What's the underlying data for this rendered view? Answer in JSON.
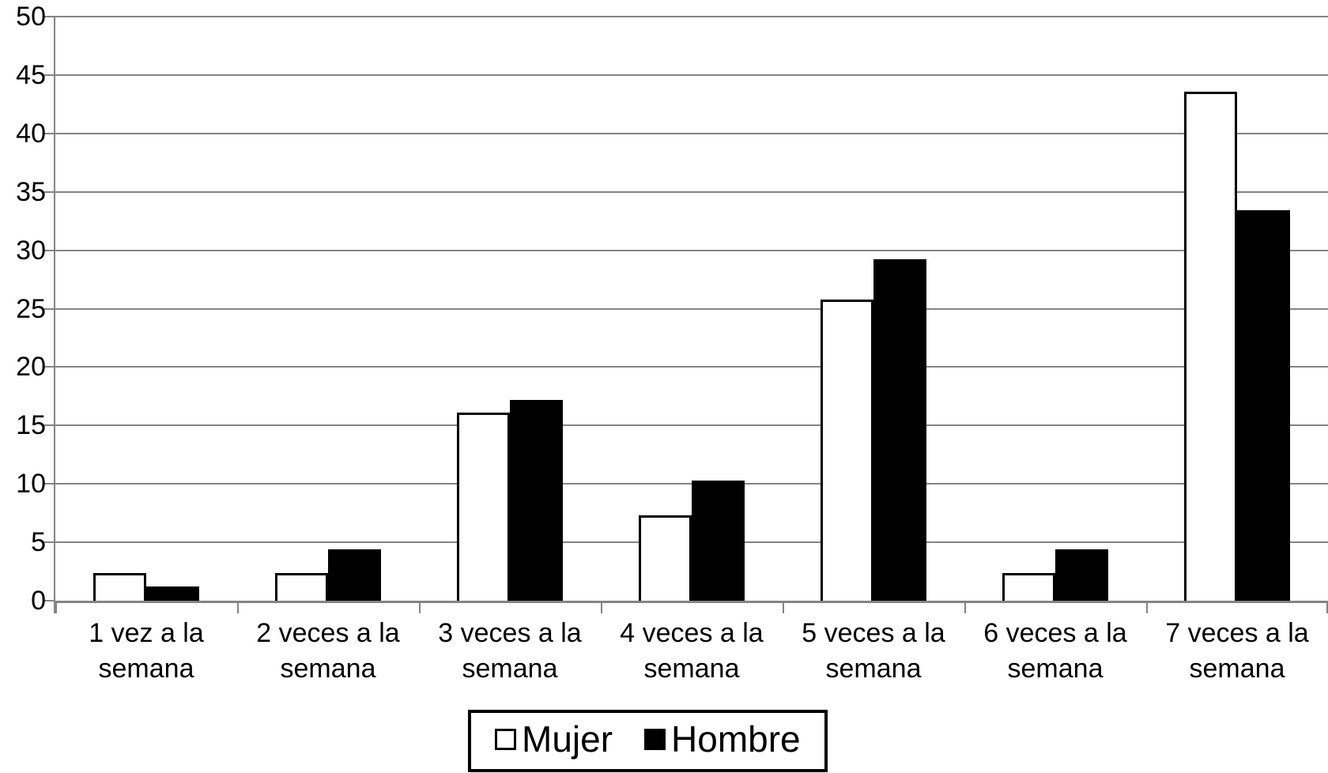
{
  "chart_data": {
    "type": "bar",
    "title": "",
    "xlabel": "",
    "ylabel": "",
    "categories": [
      {
        "line1": "1 vez a la",
        "line2": "semana"
      },
      {
        "line1": "2 veces a la",
        "line2": "semana"
      },
      {
        "line1": "3 veces a la",
        "line2": "semana"
      },
      {
        "line1": "4 veces a la",
        "line2": "semana"
      },
      {
        "line1": "5 veces a la",
        "line2": "semana"
      },
      {
        "line1": "6 veces a la",
        "line2": "semana"
      },
      {
        "line1": "7 veces a la",
        "line2": "semana"
      }
    ],
    "series": [
      {
        "name": "Mujer",
        "values": [
          2.4,
          2.4,
          16.1,
          7.3,
          25.8,
          2.4,
          43.6
        ],
        "fill": "#ffffff",
        "stroke": "#000000"
      },
      {
        "name": "Hombre",
        "values": [
          1.2,
          4.4,
          17.2,
          10.3,
          29.2,
          4.4,
          33.4
        ],
        "fill": "#000000",
        "stroke": "#000000"
      }
    ],
    "ylim": [
      0,
      50
    ],
    "y_tick_step": 5,
    "y_ticks": [
      0,
      5,
      10,
      15,
      20,
      25,
      30,
      35,
      40,
      45,
      50
    ],
    "grid": true,
    "legend_position": "bottom",
    "colors": {
      "gridline": "#848484",
      "axis": "#848484",
      "text": "#000000",
      "background": "#ffffff"
    }
  }
}
